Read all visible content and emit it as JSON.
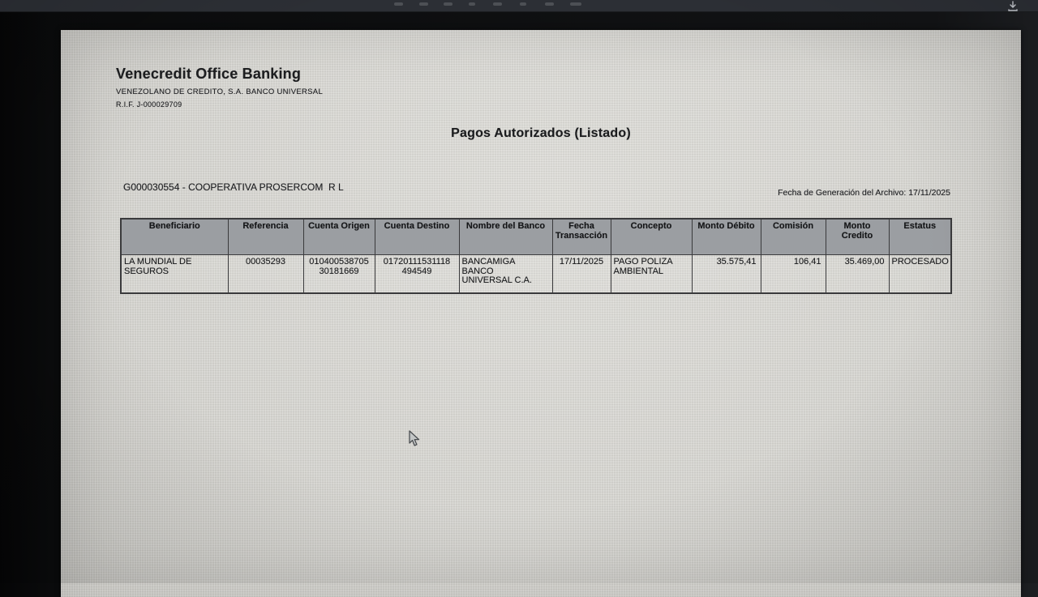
{
  "toolbar": {
    "download_icon": "download-tray-arrow"
  },
  "document": {
    "bank": {
      "name": "Venecredit Office Banking",
      "subtitle": "VENEZOLANO DE CREDITO, S.A. BANCO UNIVERSAL",
      "rif": "R.I.F. J-000029709"
    },
    "title": "Pagos Autorizados (Listado)",
    "client_line": "G000030554 - COOPERATIVA PROSERCOM  R L",
    "file_generation": "Fecha de Generación del Archivo: 17/11/2025",
    "table": {
      "headers": [
        "Beneficiario",
        "Referencia",
        "Cuenta Origen",
        "Cuenta Destino",
        "Nombre del Banco",
        "Fecha Transacción",
        "Concepto",
        "Monto Débito",
        "Comisión",
        "Monto Credito",
        "Estatus"
      ],
      "rows": [
        [
          "LA MUNDIAL DE SEGUROS",
          "00035293",
          "010400538705 30181669",
          "01720111531118 494549",
          "BANCAMIGA BANCO UNIVERSAL C.A.",
          "17/11/2025",
          "PAGO POLIZA AMBIENTAL",
          "35.575,41",
          "106,41",
          "35.469,00",
          "PROCESADO"
        ]
      ]
    }
  },
  "colors": {
    "page_bg": "#d8d7d2",
    "header_row_bg": "#9b9ea2",
    "table_border": "#3a3a3c",
    "toolbar_bg": "#2c2f35",
    "accent_text": "#1b1c1e"
  }
}
